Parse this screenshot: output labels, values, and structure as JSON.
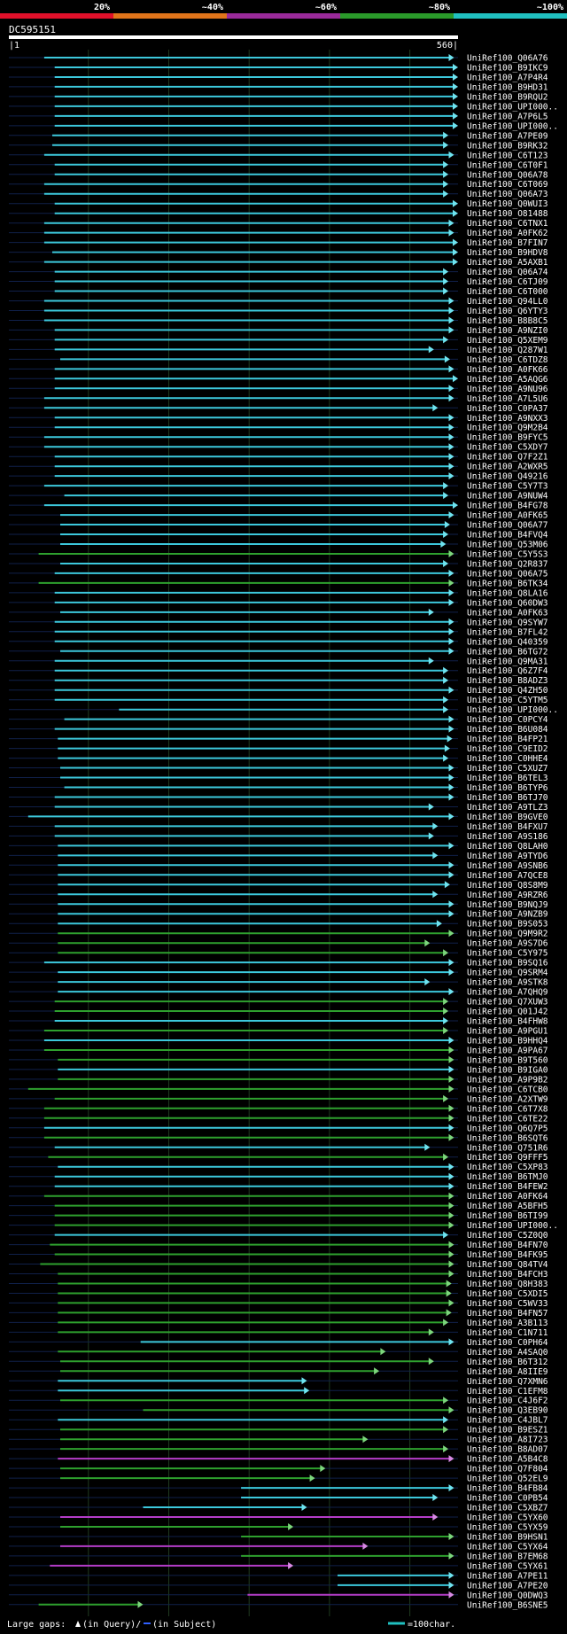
{
  "chart_data": {
    "type": "alignment-overview",
    "title": "DC595151",
    "query_length": 560,
    "axis_start_label": "|1",
    "axis_end_label": "560|",
    "identity_scale": {
      "labels": [
        "20%",
        "~40%",
        "~60%",
        "~80%",
        "~100%"
      ],
      "colors": [
        "#e0102a",
        "#e0741a",
        "#9a2a9a",
        "#2a9a2a",
        "#20c0c0"
      ]
    },
    "legend": {
      "gaps_label": "Large gaps:",
      "query_gap_label": "(in Query)/",
      "subject_gap_label": "(in Subject)",
      "scale_label": "=100char."
    },
    "hits": [
      {
        "name": "UniRef100_Q06A76",
        "start": 45,
        "end": 555,
        "color": "cyan"
      },
      {
        "name": "UniRef100_B9IKC9",
        "start": 58,
        "end": 560,
        "color": "cyan"
      },
      {
        "name": "UniRef100_A7P4R4",
        "start": 58,
        "end": 560,
        "color": "cyan"
      },
      {
        "name": "UniRef100_B9HD31",
        "start": 58,
        "end": 560,
        "color": "cyan"
      },
      {
        "name": "UniRef100_B9RQU2",
        "start": 58,
        "end": 560,
        "color": "cyan"
      },
      {
        "name": "UniRef100_UPI000..",
        "start": 58,
        "end": 560,
        "color": "cyan"
      },
      {
        "name": "UniRef100_A7P6L5",
        "start": 58,
        "end": 560,
        "color": "cyan"
      },
      {
        "name": "UniRef100_UPI000..",
        "start": 58,
        "end": 560,
        "color": "cyan"
      },
      {
        "name": "UniRef100_A7PE09",
        "start": 55,
        "end": 548,
        "color": "cyan"
      },
      {
        "name": "UniRef100_B9RK32",
        "start": 55,
        "end": 548,
        "color": "cyan"
      },
      {
        "name": "UniRef100_C6T123",
        "start": 45,
        "end": 555,
        "color": "cyan"
      },
      {
        "name": "UniRef100_C6T0F1",
        "start": 58,
        "end": 548,
        "color": "cyan"
      },
      {
        "name": "UniRef100_Q06A78",
        "start": 58,
        "end": 548,
        "color": "cyan"
      },
      {
        "name": "UniRef100_C6T069",
        "start": 45,
        "end": 548,
        "color": "cyan"
      },
      {
        "name": "UniRef100_Q06A73",
        "start": 45,
        "end": 548,
        "color": "cyan"
      },
      {
        "name": "UniRef100_Q0WUI3",
        "start": 58,
        "end": 560,
        "color": "cyan"
      },
      {
        "name": "UniRef100_O81488",
        "start": 58,
        "end": 560,
        "color": "cyan"
      },
      {
        "name": "UniRef100_C6TNX1",
        "start": 45,
        "end": 555,
        "color": "cyan"
      },
      {
        "name": "UniRef100_A0FK62",
        "start": 45,
        "end": 555,
        "color": "cyan"
      },
      {
        "name": "UniRef100_B7FIN7",
        "start": 45,
        "end": 560,
        "color": "cyan"
      },
      {
        "name": "UniRef100_B9HDV8",
        "start": 55,
        "end": 560,
        "color": "cyan"
      },
      {
        "name": "UniRef100_A5AXB1",
        "start": 45,
        "end": 560,
        "color": "cyan"
      },
      {
        "name": "UniRef100_Q06A74",
        "start": 58,
        "end": 548,
        "color": "cyan"
      },
      {
        "name": "UniRef100_C6TJ09",
        "start": 58,
        "end": 548,
        "color": "cyan"
      },
      {
        "name": "UniRef100_C6T000",
        "start": 58,
        "end": 548,
        "color": "cyan"
      },
      {
        "name": "UniRef100_Q94LL0",
        "start": 45,
        "end": 555,
        "color": "cyan"
      },
      {
        "name": "UniRef100_Q6YTY3",
        "start": 45,
        "end": 555,
        "color": "cyan"
      },
      {
        "name": "UniRef100_B8B8C5",
        "start": 45,
        "end": 555,
        "color": "cyan"
      },
      {
        "name": "UniRef100_A9NZI0",
        "start": 58,
        "end": 555,
        "color": "cyan"
      },
      {
        "name": "UniRef100_Q5XEM9",
        "start": 58,
        "end": 548,
        "color": "cyan"
      },
      {
        "name": "UniRef100_Q287W1",
        "start": 58,
        "end": 530,
        "color": "cyan"
      },
      {
        "name": "UniRef100_C6TDZ8",
        "start": 65,
        "end": 550,
        "color": "cyan"
      },
      {
        "name": "UniRef100_A0FK66",
        "start": 58,
        "end": 555,
        "color": "cyan"
      },
      {
        "name": "UniRef100_A5AQG6",
        "start": 58,
        "end": 560,
        "color": "cyan"
      },
      {
        "name": "UniRef100_A9NU96",
        "start": 58,
        "end": 555,
        "color": "cyan"
      },
      {
        "name": "UniRef100_A7L5U6",
        "start": 45,
        "end": 555,
        "color": "cyan"
      },
      {
        "name": "UniRef100_C0PA37",
        "start": 45,
        "end": 535,
        "color": "cyan"
      },
      {
        "name": "UniRef100_A9NXX3",
        "start": 58,
        "end": 555,
        "color": "cyan"
      },
      {
        "name": "UniRef100_Q9M2B4",
        "start": 58,
        "end": 555,
        "color": "cyan"
      },
      {
        "name": "UniRef100_B9FYC5",
        "start": 45,
        "end": 555,
        "color": "cyan"
      },
      {
        "name": "UniRef100_C5XDY7",
        "start": 45,
        "end": 555,
        "color": "cyan"
      },
      {
        "name": "UniRef100_Q7F2Z1",
        "start": 58,
        "end": 555,
        "color": "cyan"
      },
      {
        "name": "UniRef100_A2WXR5",
        "start": 58,
        "end": 555,
        "color": "cyan"
      },
      {
        "name": "UniRef100_Q49216",
        "start": 58,
        "end": 555,
        "color": "cyan"
      },
      {
        "name": "UniRef100_C5Y7T3",
        "start": 45,
        "end": 548,
        "color": "cyan"
      },
      {
        "name": "UniRef100_A9NUW4",
        "start": 70,
        "end": 548,
        "color": "cyan"
      },
      {
        "name": "UniRef100_B4FG78",
        "start": 45,
        "end": 560,
        "color": "cyan"
      },
      {
        "name": "UniRef100_A0FK65",
        "start": 65,
        "end": 555,
        "color": "cyan"
      },
      {
        "name": "UniRef100_Q06A77",
        "start": 65,
        "end": 550,
        "color": "cyan"
      },
      {
        "name": "UniRef100_B4FVQ4",
        "start": 65,
        "end": 548,
        "color": "cyan"
      },
      {
        "name": "UniRef100_Q53M06",
        "start": 65,
        "end": 545,
        "color": "cyan"
      },
      {
        "name": "UniRef100_C5Y5S3",
        "start": 38,
        "end": 555,
        "color": "green"
      },
      {
        "name": "UniRef100_Q2R837",
        "start": 65,
        "end": 548,
        "color": "cyan"
      },
      {
        "name": "UniRef100_Q06A75",
        "start": 58,
        "end": 555,
        "color": "cyan"
      },
      {
        "name": "UniRef100_B6TK34",
        "start": 38,
        "end": 555,
        "color": "green"
      },
      {
        "name": "UniRef100_Q8LA16",
        "start": 58,
        "end": 555,
        "color": "cyan"
      },
      {
        "name": "UniRef100_Q60DW3",
        "start": 58,
        "end": 555,
        "color": "cyan"
      },
      {
        "name": "UniRef100_A0FK63",
        "start": 65,
        "end": 530,
        "color": "cyan"
      },
      {
        "name": "UniRef100_Q9SYW7",
        "start": 58,
        "end": 555,
        "color": "cyan"
      },
      {
        "name": "UniRef100_B7FL42",
        "start": 58,
        "end": 555,
        "color": "cyan"
      },
      {
        "name": "UniRef100_Q40359",
        "start": 58,
        "end": 555,
        "color": "cyan"
      },
      {
        "name": "UniRef100_B6TG72",
        "start": 65,
        "end": 555,
        "color": "cyan"
      },
      {
        "name": "UniRef100_Q9MA31",
        "start": 58,
        "end": 530,
        "color": "cyan"
      },
      {
        "name": "UniRef100_Q6Z7F4",
        "start": 58,
        "end": 548,
        "color": "cyan"
      },
      {
        "name": "UniRef100_B8ADZ3",
        "start": 58,
        "end": 548,
        "color": "cyan"
      },
      {
        "name": "UniRef100_Q4ZH50",
        "start": 58,
        "end": 555,
        "color": "cyan"
      },
      {
        "name": "UniRef100_C5YTM5",
        "start": 58,
        "end": 548,
        "color": "cyan"
      },
      {
        "name": "UniRef100_UPI000..",
        "start": 138,
        "end": 548,
        "color": "cyan"
      },
      {
        "name": "UniRef100_C0PCY4",
        "start": 70,
        "end": 555,
        "color": "cyan"
      },
      {
        "name": "UniRef100_B6U084",
        "start": 58,
        "end": 555,
        "color": "cyan"
      },
      {
        "name": "UniRef100_B4FP21",
        "start": 62,
        "end": 553,
        "color": "cyan"
      },
      {
        "name": "UniRef100_C9EID2",
        "start": 62,
        "end": 550,
        "color": "cyan"
      },
      {
        "name": "UniRef100_C0HHE4",
        "start": 62,
        "end": 548,
        "color": "cyan"
      },
      {
        "name": "UniRef100_C5XUZ7",
        "start": 65,
        "end": 555,
        "color": "cyan"
      },
      {
        "name": "UniRef100_B6TEL3",
        "start": 65,
        "end": 555,
        "color": "cyan"
      },
      {
        "name": "UniRef100_B6TYP6",
        "start": 70,
        "end": 555,
        "color": "cyan"
      },
      {
        "name": "UniRef100_B6TJ70",
        "start": 58,
        "end": 555,
        "color": "cyan"
      },
      {
        "name": "UniRef100_A9TLZ3",
        "start": 58,
        "end": 530,
        "color": "cyan"
      },
      {
        "name": "UniRef100_B9GVE0",
        "start": 25,
        "end": 555,
        "color": "cyan"
      },
      {
        "name": "UniRef100_B4FXU7",
        "start": 58,
        "end": 535,
        "color": "cyan"
      },
      {
        "name": "UniRef100_A9S186",
        "start": 58,
        "end": 530,
        "color": "cyan"
      },
      {
        "name": "UniRef100_Q8LAH0",
        "start": 62,
        "end": 555,
        "color": "cyan"
      },
      {
        "name": "UniRef100_A9TYD6",
        "start": 62,
        "end": 535,
        "color": "cyan"
      },
      {
        "name": "UniRef100_A9SNB6",
        "start": 62,
        "end": 555,
        "color": "cyan"
      },
      {
        "name": "UniRef100_A7QCE8",
        "start": 62,
        "end": 555,
        "color": "cyan"
      },
      {
        "name": "UniRef100_Q8S8M9",
        "start": 62,
        "end": 550,
        "color": "cyan"
      },
      {
        "name": "UniRef100_A9RZR6",
        "start": 62,
        "end": 535,
        "color": "cyan"
      },
      {
        "name": "UniRef100_B9NQJ9",
        "start": 62,
        "end": 555,
        "color": "cyan"
      },
      {
        "name": "UniRef100_A9NZB9",
        "start": 62,
        "end": 555,
        "color": "cyan"
      },
      {
        "name": "UniRef100_B9S053",
        "start": 62,
        "end": 540,
        "color": "cyan"
      },
      {
        "name": "UniRef100_Q9M9R2",
        "start": 62,
        "end": 555,
        "color": "green"
      },
      {
        "name": "UniRef100_A9S7D6",
        "start": 62,
        "end": 525,
        "color": "green"
      },
      {
        "name": "UniRef100_C5Y975",
        "start": 62,
        "end": 548,
        "color": "green"
      },
      {
        "name": "UniRef100_B9SQ16",
        "start": 45,
        "end": 555,
        "color": "cyan"
      },
      {
        "name": "UniRef100_Q9SRM4",
        "start": 62,
        "end": 555,
        "color": "cyan"
      },
      {
        "name": "UniRef100_A9STK8",
        "start": 62,
        "end": 525,
        "color": "cyan"
      },
      {
        "name": "UniRef100_A7QHQ9",
        "start": 62,
        "end": 555,
        "color": "cyan"
      },
      {
        "name": "UniRef100_Q7XUW3",
        "start": 58,
        "end": 548,
        "color": "green"
      },
      {
        "name": "UniRef100_Q01J42",
        "start": 58,
        "end": 548,
        "color": "green"
      },
      {
        "name": "UniRef100_B4FHW8",
        "start": 58,
        "end": 548,
        "color": "cyan"
      },
      {
        "name": "UniRef100_A9PGU1",
        "start": 45,
        "end": 548,
        "color": "green"
      },
      {
        "name": "UniRef100_B9HHQ4",
        "start": 45,
        "end": 555,
        "color": "cyan"
      },
      {
        "name": "UniRef100_A9PA67",
        "start": 45,
        "end": 555,
        "color": "green"
      },
      {
        "name": "UniRef100_B9T560",
        "start": 62,
        "end": 555,
        "color": "green"
      },
      {
        "name": "UniRef100_B9IGA0",
        "start": 62,
        "end": 555,
        "color": "cyan"
      },
      {
        "name": "UniRef100_A9P9B2",
        "start": 62,
        "end": 555,
        "color": "green"
      },
      {
        "name": "UniRef100_C6TCB0",
        "start": 25,
        "end": 555,
        "color": "green"
      },
      {
        "name": "UniRef100_A2XTW9",
        "start": 58,
        "end": 548,
        "color": "green"
      },
      {
        "name": "UniRef100_C6T7X8",
        "start": 45,
        "end": 555,
        "color": "green"
      },
      {
        "name": "UniRef100_C6TE22",
        "start": 45,
        "end": 555,
        "color": "green"
      },
      {
        "name": "UniRef100_Q6Q7P5",
        "start": 45,
        "end": 555,
        "color": "cyan"
      },
      {
        "name": "UniRef100_B6SQT6",
        "start": 45,
        "end": 555,
        "color": "green"
      },
      {
        "name": "UniRef100_Q751R6",
        "start": 58,
        "end": 525,
        "color": "cyan"
      },
      {
        "name": "UniRef100_Q9FFF5",
        "start": 50,
        "end": 548,
        "color": "green"
      },
      {
        "name": "UniRef100_C5XP83",
        "start": 62,
        "end": 555,
        "color": "cyan"
      },
      {
        "name": "UniRef100_B6TMJ0",
        "start": 58,
        "end": 555,
        "color": "cyan"
      },
      {
        "name": "UniRef100_B4FEW2",
        "start": 58,
        "end": 555,
        "color": "cyan"
      },
      {
        "name": "UniRef100_A0FK64",
        "start": 45,
        "end": 555,
        "color": "green"
      },
      {
        "name": "UniRef100_A5BFH5",
        "start": 58,
        "end": 555,
        "color": "green"
      },
      {
        "name": "UniRef100_B6TI99",
        "start": 58,
        "end": 555,
        "color": "green"
      },
      {
        "name": "UniRef100_UPI000..",
        "start": 58,
        "end": 555,
        "color": "green"
      },
      {
        "name": "UniRef100_C5Z0Q0",
        "start": 58,
        "end": 548,
        "color": "cyan"
      },
      {
        "name": "UniRef100_B4FN70",
        "start": 52,
        "end": 555,
        "color": "green"
      },
      {
        "name": "UniRef100_B4FK95",
        "start": 58,
        "end": 555,
        "color": "green"
      },
      {
        "name": "UniRef100_Q84TV4",
        "start": 40,
        "end": 555,
        "color": "green"
      },
      {
        "name": "UniRef100_B4FCH3",
        "start": 62,
        "end": 555,
        "color": "green"
      },
      {
        "name": "UniRef100_Q8H383",
        "start": 62,
        "end": 552,
        "color": "green"
      },
      {
        "name": "UniRef100_C5XDI5",
        "start": 62,
        "end": 552,
        "color": "green"
      },
      {
        "name": "UniRef100_C5WV33",
        "start": 62,
        "end": 555,
        "color": "green"
      },
      {
        "name": "UniRef100_B4FN57",
        "start": 62,
        "end": 552,
        "color": "green"
      },
      {
        "name": "UniRef100_A3B113",
        "start": 62,
        "end": 548,
        "color": "green"
      },
      {
        "name": "UniRef100_C1N711",
        "start": 62,
        "end": 530,
        "color": "green"
      },
      {
        "name": "UniRef100_C0PH64",
        "start": 165,
        "end": 555,
        "color": "cyan"
      },
      {
        "name": "UniRef100_A4SAQ0",
        "start": 62,
        "end": 470,
        "color": "green"
      },
      {
        "name": "UniRef100_B6T312",
        "start": 65,
        "end": 530,
        "color": "green"
      },
      {
        "name": "UniRef100_A8IIE9",
        "start": 65,
        "end": 462,
        "color": "green"
      },
      {
        "name": "UniRef100_Q7XMN6",
        "start": 62,
        "end": 372,
        "color": "cyan"
      },
      {
        "name": "UniRef100_C1EFM8",
        "start": 62,
        "end": 375,
        "color": "cyan"
      },
      {
        "name": "UniRef100_C4J6F2",
        "start": 65,
        "end": 548,
        "color": "green"
      },
      {
        "name": "UniRef100_Q3EB90",
        "start": 168,
        "end": 555,
        "color": "green"
      },
      {
        "name": "UniRef100_C4JBL7",
        "start": 62,
        "end": 548,
        "color": "cyan"
      },
      {
        "name": "UniRef100_B9ESZ1",
        "start": 65,
        "end": 548,
        "color": "green"
      },
      {
        "name": "UniRef100_A8I723",
        "start": 65,
        "end": 448,
        "color": "green"
      },
      {
        "name": "UniRef100_B8AD07",
        "start": 65,
        "end": 548,
        "color": "green"
      },
      {
        "name": "UniRef100_A5B4C8",
        "start": 62,
        "end": 555,
        "color": "magenta"
      },
      {
        "name": "UniRef100_Q7F804",
        "start": 65,
        "end": 395,
        "color": "green"
      },
      {
        "name": "UniRef100_Q52EL9",
        "start": 65,
        "end": 382,
        "color": "green"
      },
      {
        "name": "UniRef100_B4FB84",
        "start": 290,
        "end": 555,
        "color": "cyan"
      },
      {
        "name": "UniRef100_C0PB54",
        "start": 290,
        "end": 535,
        "color": "cyan"
      },
      {
        "name": "UniRef100_C5XBZ7",
        "start": 168,
        "end": 372,
        "color": "cyan"
      },
      {
        "name": "UniRef100_C5YX60",
        "start": 65,
        "end": 535,
        "color": "magenta"
      },
      {
        "name": "UniRef100_C5YX59",
        "start": 65,
        "end": 355,
        "color": "green"
      },
      {
        "name": "UniRef100_B9HSN1",
        "start": 290,
        "end": 555,
        "color": "green"
      },
      {
        "name": "UniRef100_C5YX64",
        "start": 65,
        "end": 448,
        "color": "magenta"
      },
      {
        "name": "UniRef100_B7EM68",
        "start": 290,
        "end": 555,
        "color": "green"
      },
      {
        "name": "UniRef100_C5YX61",
        "start": 52,
        "end": 355,
        "color": "magenta"
      },
      {
        "name": "UniRef100_A7PE11",
        "start": 410,
        "end": 555,
        "color": "cyan"
      },
      {
        "name": "UniRef100_A7PE20",
        "start": 410,
        "end": 555,
        "color": "cyan"
      },
      {
        "name": "UniRef100_Q0DWQ3",
        "start": 298,
        "end": 555,
        "color": "magenta"
      },
      {
        "name": "UniRef100_B6SNE5",
        "start": 38,
        "end": 168,
        "color": "green"
      }
    ]
  }
}
